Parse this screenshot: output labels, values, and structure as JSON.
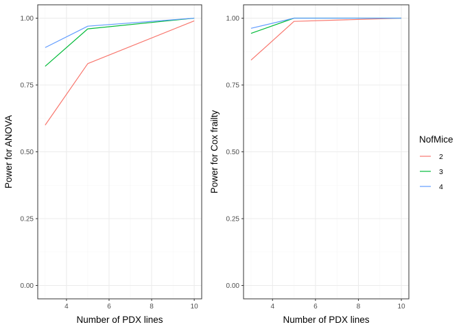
{
  "chart_data": [
    {
      "type": "line",
      "xlabel": "Number of PDX lines",
      "ylabel": "Power for ANOVA",
      "xlim": [
        2.65,
        10.35
      ],
      "ylim": [
        -0.05,
        1.05
      ],
      "x_ticks": [
        4,
        6,
        8,
        10
      ],
      "x_minor_ticks": [
        3,
        5,
        7,
        9
      ],
      "y_ticks": [
        0.0,
        0.25,
        0.5,
        0.75,
        1.0
      ],
      "y_tick_labels": [
        "0.00",
        "0.25",
        "0.50",
        "0.75",
        "1.00"
      ],
      "y_minor_ticks": [
        0.125,
        0.375,
        0.625,
        0.875
      ],
      "x_tick_labels": [
        "4",
        "6",
        "8",
        "10"
      ],
      "grid": true,
      "series": [
        {
          "name": "2",
          "x": [
            3,
            5,
            10
          ],
          "values": [
            0.6,
            0.83,
            0.99
          ]
        },
        {
          "name": "3",
          "x": [
            3,
            5,
            10
          ],
          "values": [
            0.82,
            0.96,
            1.0
          ]
        },
        {
          "name": "4",
          "x": [
            3,
            5,
            10
          ],
          "values": [
            0.89,
            0.97,
            1.0
          ]
        }
      ]
    },
    {
      "type": "line",
      "xlabel": "Number of PDX lines",
      "ylabel": "Power for Cox frailty",
      "xlim": [
        2.65,
        10.35
      ],
      "ylim": [
        -0.05,
        1.05
      ],
      "x_ticks": [
        4,
        6,
        8,
        10
      ],
      "x_minor_ticks": [
        3,
        5,
        7,
        9
      ],
      "y_ticks": [
        0.0,
        0.25,
        0.5,
        0.75,
        1.0
      ],
      "y_tick_labels": [
        "0.00",
        "0.25",
        "0.50",
        "0.75",
        "1.00"
      ],
      "y_minor_ticks": [
        0.125,
        0.375,
        0.625,
        0.875
      ],
      "x_tick_labels": [
        "4",
        "6",
        "8",
        "10"
      ],
      "grid": true,
      "series": [
        {
          "name": "2",
          "x": [
            3,
            5,
            10
          ],
          "values": [
            0.843,
            0.988,
            1.0
          ]
        },
        {
          "name": "3",
          "x": [
            3,
            5,
            10
          ],
          "values": [
            0.943,
            1.0,
            1.0
          ]
        },
        {
          "name": "4",
          "x": [
            3,
            5,
            10
          ],
          "values": [
            0.962,
            1.0,
            1.0
          ]
        }
      ]
    }
  ],
  "legend": {
    "title": "NofMice",
    "placement": "right",
    "items": [
      {
        "label": "2",
        "color": "#F8766D"
      },
      {
        "label": "3",
        "color": "#00BA38"
      },
      {
        "label": "4",
        "color": "#619CFF"
      }
    ]
  },
  "colors": {
    "2": "#F8766D",
    "3": "#00BA38",
    "4": "#619CFF",
    "grid_major": "#ebebeb",
    "grid_minor": "#f5f5f5",
    "panel_border": "#333333"
  }
}
